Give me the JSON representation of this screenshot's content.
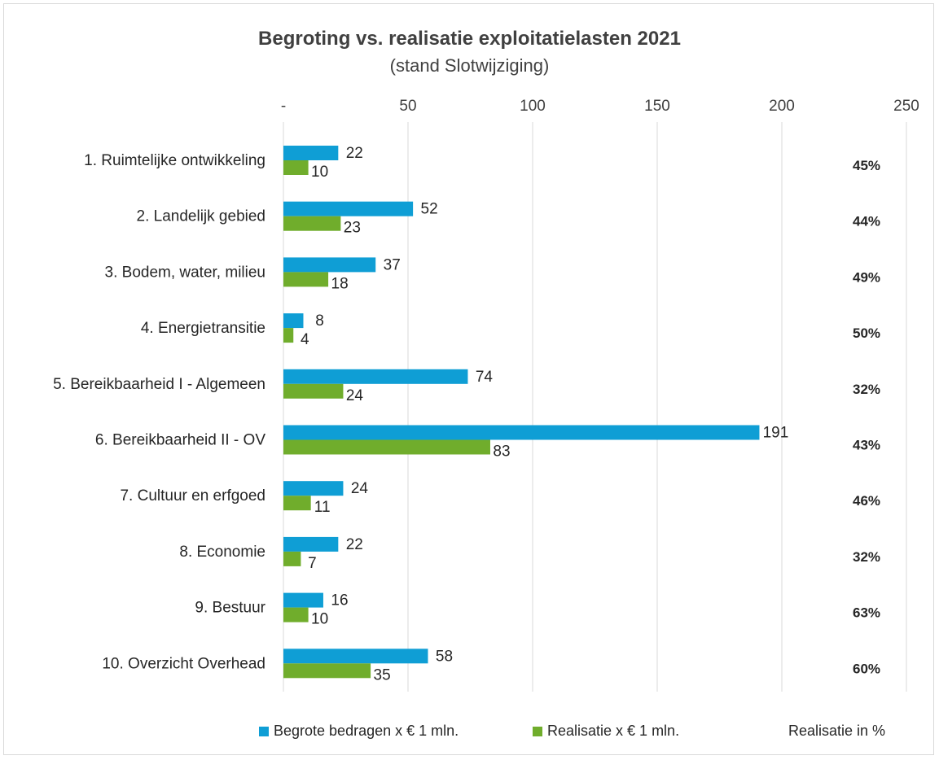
{
  "chart_data": {
    "type": "bar",
    "orientation": "horizontal",
    "title": "Begroting vs. realisatie exploitatielasten 2021",
    "subtitle": "(stand Slotwijziging)",
    "categories": [
      "1. Ruimtelijke ontwikkeling",
      "2. Landelijk gebied",
      "3. Bodem, water, milieu",
      "4. Energietransitie",
      "5. Bereikbaarheid I - Algemeen",
      "6. Bereikbaarheid II - OV",
      "7. Cultuur en erfgoed",
      "8. Economie",
      "9. Bestuur",
      "10. Overzicht Overhead"
    ],
    "series": [
      {
        "name": "Begrote bedragen x € 1 mln.",
        "color": "#0f9ed5",
        "values": [
          22,
          52,
          37,
          8,
          74,
          191,
          24,
          22,
          16,
          58
        ]
      },
      {
        "name": "Realisatie x € 1 mln.",
        "color": "#70ad2c",
        "values": [
          10,
          23,
          18,
          4,
          24,
          83,
          11,
          7,
          10,
          35
        ]
      }
    ],
    "percent_label": "Realisatie in %",
    "percentages": [
      "45%",
      "44%",
      "49%",
      "50%",
      "32%",
      "43%",
      "46%",
      "32%",
      "63%",
      "60%"
    ],
    "xlim": [
      0,
      250
    ],
    "xticks": [
      "-",
      "50",
      "100",
      "150",
      "200",
      "250"
    ],
    "xaxis_position": "top",
    "grid": true,
    "legend_position": "bottom"
  }
}
